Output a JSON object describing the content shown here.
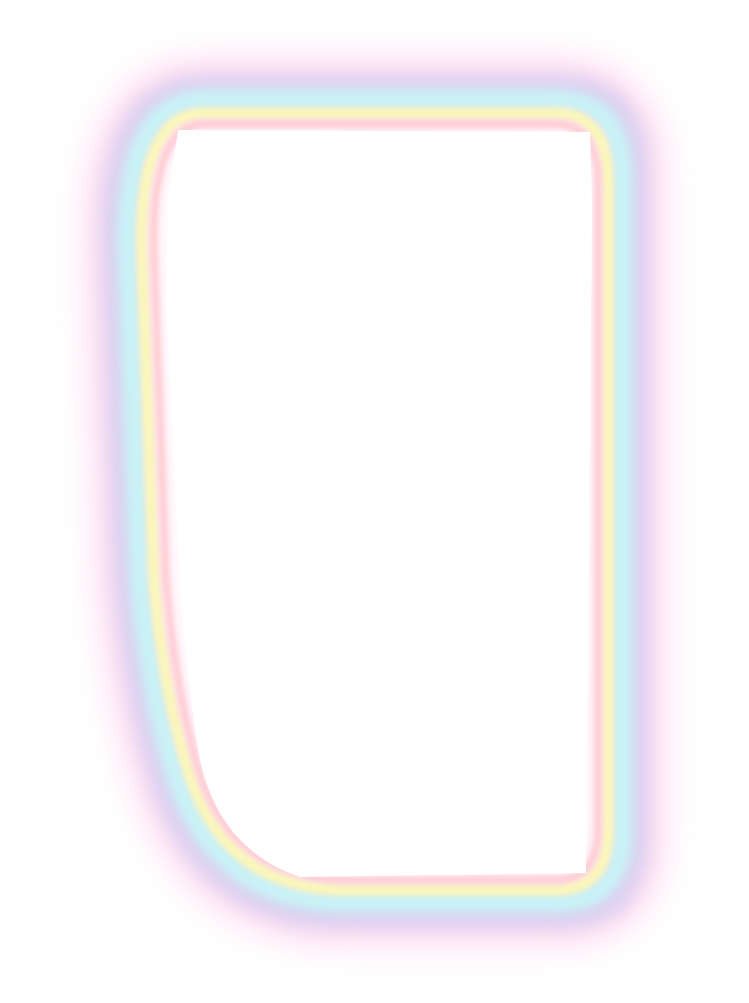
{
  "frame": {
    "icon": "rainbow-glow-frame",
    "colors": {
      "background": "#ffffff",
      "outer_pink": "#ffd6ee",
      "lavender": "#d9d2f2",
      "cyan": "#c8f3f6",
      "yellow": "#fbf7b8",
      "inner_pink": "#ffc9cf",
      "inner_fill": "#ffffff"
    }
  }
}
